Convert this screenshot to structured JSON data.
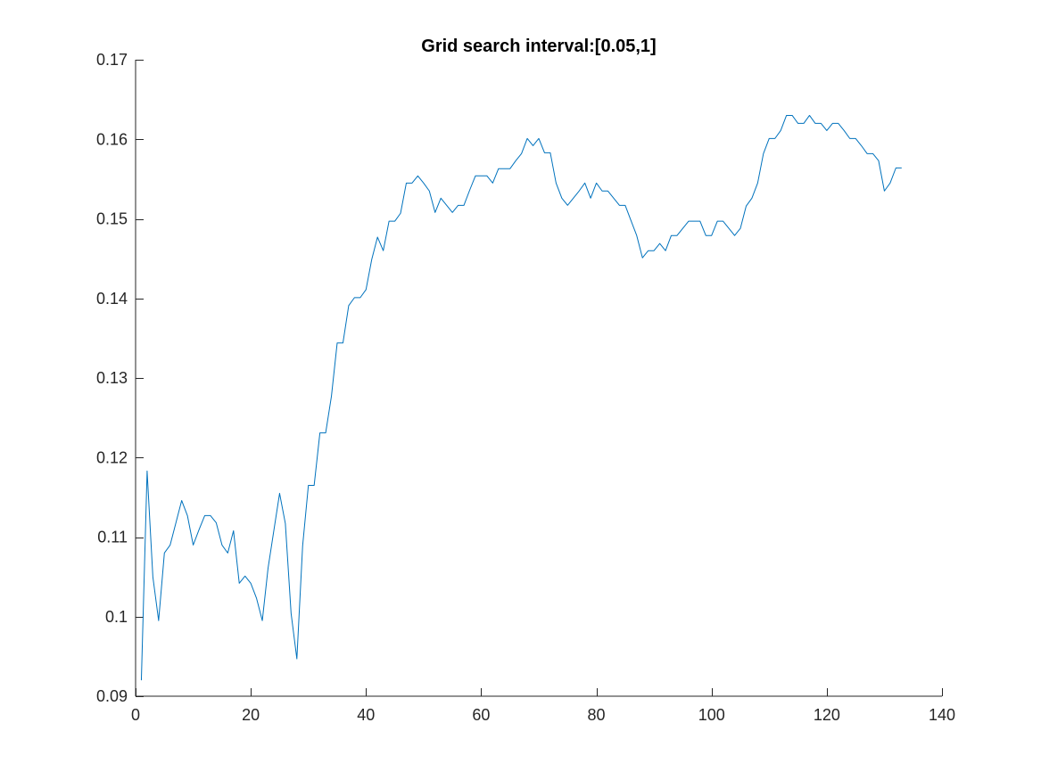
{
  "chart_data": {
    "type": "line",
    "title": "Grid search interval:[0.05,1]",
    "xlabel": "",
    "ylabel": "",
    "xlim": [
      0,
      140
    ],
    "ylim": [
      0.09,
      0.17
    ],
    "xticks": [
      0,
      20,
      40,
      60,
      80,
      100,
      120,
      140
    ],
    "xtick_labels": [
      "0",
      "20",
      "40",
      "60",
      "80",
      "100",
      "120",
      "140"
    ],
    "yticks": [
      0.09,
      0.1,
      0.11,
      0.12,
      0.13,
      0.14,
      0.15,
      0.16,
      0.17
    ],
    "ytick_labels": [
      "0.09",
      "0.1",
      "0.11",
      "0.12",
      "0.13",
      "0.14",
      "0.15",
      "0.16",
      "0.17"
    ],
    "grid": false,
    "legend": "none",
    "series": [
      {
        "color": "#0072BD",
        "x": [
          1,
          2,
          3,
          4,
          5,
          6,
          7,
          8,
          9,
          10,
          11,
          12,
          13,
          14,
          15,
          16,
          17,
          18,
          19,
          20,
          21,
          22,
          23,
          24,
          25,
          26,
          27,
          28,
          29,
          30,
          31,
          32,
          33,
          34,
          35,
          36,
          37,
          38,
          39,
          40,
          41,
          42,
          43,
          44,
          45,
          46,
          47,
          48,
          49,
          50,
          51,
          52,
          53,
          54,
          55,
          56,
          57,
          58,
          59,
          60,
          61,
          62,
          63,
          64,
          65,
          66,
          67,
          68,
          69,
          70,
          71,
          72,
          73,
          74,
          75,
          76,
          77,
          78,
          79,
          80,
          81,
          82,
          83,
          84,
          85,
          86,
          87,
          88,
          89,
          90,
          91,
          92,
          93,
          94,
          95,
          96,
          97,
          98,
          99,
          100,
          101,
          102,
          103,
          104,
          105,
          106,
          107,
          108,
          109,
          110,
          111,
          112,
          113,
          114,
          115,
          116,
          117,
          118,
          119,
          120,
          121,
          122,
          123,
          124,
          125,
          126,
          127,
          128,
          129,
          130,
          131,
          132,
          133
        ],
        "y": [
          0.092,
          0.1183,
          0.105,
          0.0995,
          0.108,
          0.109,
          0.1118,
          0.1146,
          0.1127,
          0.109,
          0.1109,
          0.1127,
          0.1127,
          0.1118,
          0.109,
          0.108,
          0.1108,
          0.1042,
          0.1051,
          0.1042,
          0.1023,
          0.0995,
          0.1061,
          0.1108,
          0.1155,
          0.1117,
          0.1004,
          0.0947,
          0.1089,
          0.1165,
          0.1165,
          0.1231,
          0.1231,
          0.1277,
          0.1344,
          0.1344,
          0.1391,
          0.1401,
          0.1401,
          0.1411,
          0.1449,
          0.1477,
          0.146,
          0.1497,
          0.1497,
          0.1507,
          0.1545,
          0.1545,
          0.1554,
          0.1545,
          0.1535,
          0.1508,
          0.1526,
          0.1517,
          0.1508,
          0.1517,
          0.1517,
          0.1536,
          0.1554,
          0.1554,
          0.1554,
          0.1545,
          0.1563,
          0.1563,
          0.1563,
          0.1573,
          0.1582,
          0.1601,
          0.1592,
          0.1601,
          0.1583,
          0.1583,
          0.1545,
          0.1526,
          0.1517,
          0.1526,
          0.1535,
          0.1545,
          0.1526,
          0.1545,
          0.1535,
          0.1535,
          0.1526,
          0.1517,
          0.1517,
          0.1498,
          0.1479,
          0.1451,
          0.146,
          0.146,
          0.1469,
          0.146,
          0.1479,
          0.1479,
          0.1488,
          0.1497,
          0.1497,
          0.1497,
          0.1479,
          0.1479,
          0.1497,
          0.1497,
          0.1488,
          0.1479,
          0.1488,
          0.1516,
          0.1526,
          0.1545,
          0.1582,
          0.1601,
          0.1601,
          0.1611,
          0.163,
          0.163,
          0.162,
          0.162,
          0.163,
          0.162,
          0.162,
          0.1611,
          0.162,
          0.162,
          0.1611,
          0.1601,
          0.1601,
          0.1592,
          0.1582,
          0.1582,
          0.1573,
          0.1535,
          0.1545,
          0.1564,
          0.1564
        ]
      }
    ]
  }
}
